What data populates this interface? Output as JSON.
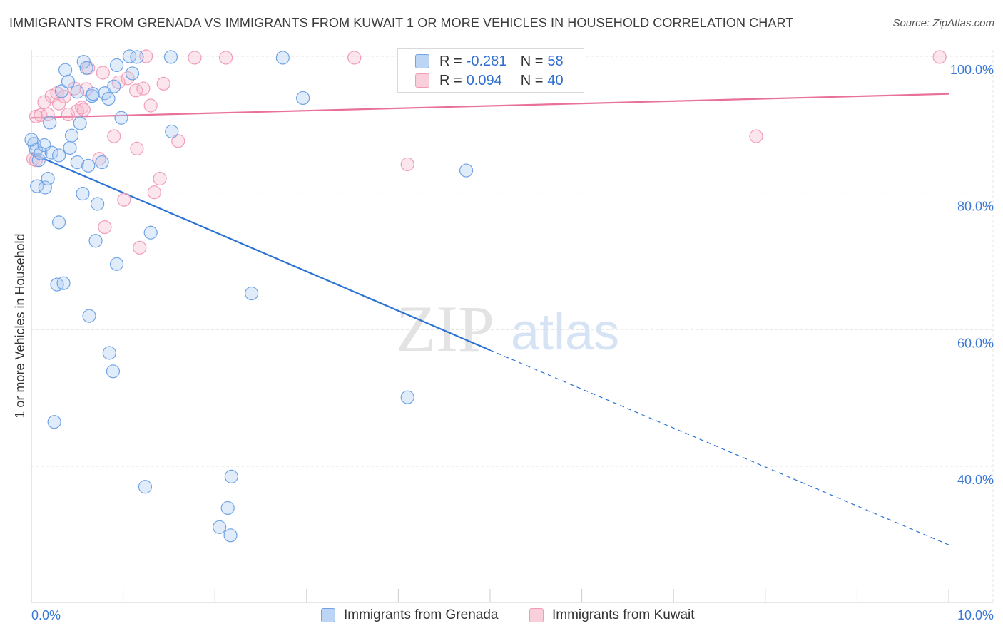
{
  "title": "IMMIGRANTS FROM GRENADA VS IMMIGRANTS FROM KUWAIT 1 OR MORE VEHICLES IN HOUSEHOLD CORRELATION CHART",
  "source": "Source: ZipAtlas.com",
  "watermark": {
    "zip": "ZIP",
    "atlas": "atlas"
  },
  "legend": {
    "grenada": {
      "r_label": "R =",
      "r_value": "-0.281",
      "n_label": "N =",
      "n_value": "58",
      "color": "#a8c8f0"
    },
    "kuwait": {
      "r_label": "R =",
      "r_value": "0.094",
      "n_label": "N =",
      "n_value": "40",
      "color": "#f5b8cc"
    }
  },
  "bottom_legend": [
    "Immigrants from Grenada",
    "Immigrants from Kuwait"
  ],
  "chart_data": {
    "type": "scatter",
    "title": "IMMIGRANTS FROM GRENADA VS IMMIGRANTS FROM KUWAIT 1 OR MORE VEHICLES IN HOUSEHOLD CORRELATION CHART",
    "xlabel": "",
    "ylabel": "1 or more Vehicles in Household",
    "xlim": [
      0,
      10
    ],
    "ylim": [
      20,
      102
    ],
    "x_tick_labels": [
      "0.0%",
      "10.0%"
    ],
    "y_ticks": [
      40,
      60,
      80,
      100
    ],
    "y_tick_labels": [
      "40.0%",
      "60.0%",
      "80.0%",
      "100.0%"
    ],
    "series": [
      {
        "name": "Immigrants from Grenada",
        "color": "#6fa3e6",
        "trend_color": "#2a72d4",
        "trend": {
          "x0": 0,
          "y0": 85.8,
          "x1": 5.0,
          "y1": 57.0,
          "dash_x1": 10.0,
          "dash_y1": 28.5
        },
        "points": [
          [
            0.03,
            87.2
          ],
          [
            0.05,
            86.3
          ],
          [
            0.08,
            84.8
          ],
          [
            0.06,
            81.0
          ],
          [
            0.1,
            85.8
          ],
          [
            0.14,
            87.0
          ],
          [
            0.15,
            80.8
          ],
          [
            0.18,
            82.1
          ],
          [
            0.2,
            90.3
          ],
          [
            0.22,
            85.9
          ],
          [
            0.3,
            85.5
          ],
          [
            0.33,
            94.9
          ],
          [
            0.37,
            98.0
          ],
          [
            0.4,
            96.3
          ],
          [
            0.42,
            86.6
          ],
          [
            0.44,
            88.4
          ],
          [
            0.5,
            94.8
          ],
          [
            0.5,
            84.5
          ],
          [
            0.53,
            90.2
          ],
          [
            0.56,
            79.9
          ],
          [
            0.57,
            99.2
          ],
          [
            0.6,
            98.3
          ],
          [
            0.62,
            84.0
          ],
          [
            0.66,
            94.2
          ],
          [
            0.67,
            94.5
          ],
          [
            0.7,
            73.0
          ],
          [
            0.72,
            78.4
          ],
          [
            0.77,
            84.5
          ],
          [
            0.8,
            94.6
          ],
          [
            0.84,
            93.8
          ],
          [
            0.9,
            95.6
          ],
          [
            0.93,
            98.7
          ],
          [
            0.98,
            91.0
          ],
          [
            1.07,
            100.0
          ],
          [
            1.1,
            97.5
          ],
          [
            1.15,
            99.9
          ],
          [
            1.3,
            74.2
          ],
          [
            1.52,
            99.9
          ],
          [
            1.53,
            89.0
          ],
          [
            2.74,
            99.8
          ],
          [
            2.96,
            93.9
          ],
          [
            4.74,
            83.3
          ],
          [
            0.3,
            75.7
          ],
          [
            0.28,
            66.6
          ],
          [
            0.35,
            66.8
          ],
          [
            0.63,
            62.0
          ],
          [
            0.85,
            56.6
          ],
          [
            0.89,
            53.9
          ],
          [
            0.93,
            69.6
          ],
          [
            0.25,
            46.5
          ],
          [
            1.24,
            37.0
          ],
          [
            2.18,
            38.5
          ],
          [
            2.14,
            33.9
          ],
          [
            2.05,
            31.1
          ],
          [
            2.17,
            29.9
          ],
          [
            2.4,
            65.3
          ],
          [
            4.1,
            50.1
          ],
          [
            0.0,
            87.8
          ]
        ]
      },
      {
        "name": "Immigrants from Kuwait",
        "color": "#f19bb8",
        "trend_color": "#e8709a",
        "trend": {
          "x0": 0,
          "y0": 91.0,
          "x1": 10.0,
          "y1": 94.5
        },
        "points": [
          [
            0.02,
            85.0
          ],
          [
            0.05,
            91.2
          ],
          [
            0.1,
            91.4
          ],
          [
            0.14,
            93.3
          ],
          [
            0.18,
            91.5
          ],
          [
            0.22,
            94.2
          ],
          [
            0.28,
            94.6
          ],
          [
            0.3,
            93.1
          ],
          [
            0.36,
            94.1
          ],
          [
            0.4,
            91.5
          ],
          [
            0.47,
            95.3
          ],
          [
            0.5,
            92.0
          ],
          [
            0.55,
            92.5
          ],
          [
            0.57,
            92.2
          ],
          [
            0.6,
            95.2
          ],
          [
            0.62,
            98.3
          ],
          [
            0.74,
            85.0
          ],
          [
            0.78,
            97.6
          ],
          [
            0.8,
            75.0
          ],
          [
            0.9,
            88.3
          ],
          [
            0.95,
            96.2
          ],
          [
            1.01,
            79.0
          ],
          [
            1.05,
            96.8
          ],
          [
            1.14,
            95.0
          ],
          [
            1.15,
            86.5
          ],
          [
            1.18,
            72.0
          ],
          [
            1.22,
            95.3
          ],
          [
            1.25,
            100.0
          ],
          [
            1.3,
            92.8
          ],
          [
            1.34,
            80.1
          ],
          [
            1.4,
            82.1
          ],
          [
            1.44,
            96.0
          ],
          [
            1.6,
            87.6
          ],
          [
            1.78,
            99.8
          ],
          [
            2.12,
            99.8
          ],
          [
            3.52,
            99.8
          ],
          [
            4.1,
            84.2
          ],
          [
            7.9,
            88.3
          ],
          [
            9.9,
            99.9
          ],
          [
            0.05,
            84.8
          ]
        ]
      }
    ]
  }
}
